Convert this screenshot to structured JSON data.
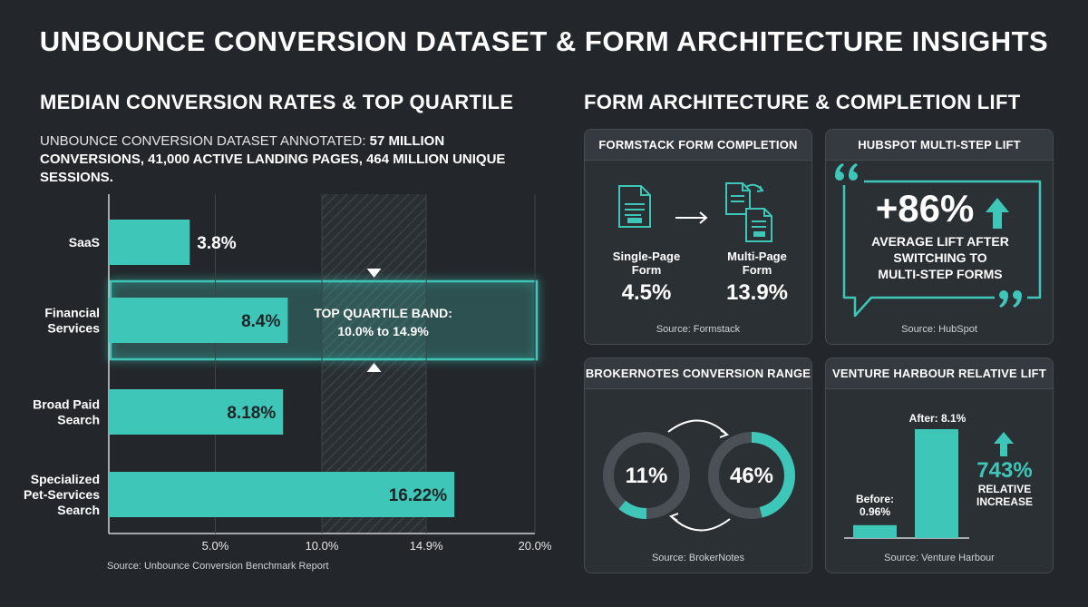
{
  "title": "UNBOUNCE CONVERSION DATASET & FORM ARCHITECTURE INSIGHTS",
  "left": {
    "heading": "MEDIAN CONVERSION RATES & TOP QUARTILE",
    "note_prefix": "UNBOUNCE CONVERSION DATASET ANNOTATED: ",
    "note_bold": "57 MILLION CONVERSIONS, 41,000 ACTIVE LANDING PAGES, 464 MILLION UNIQUE SESSIONS.",
    "source": "Source: Unbounce Conversion Benchmark Report"
  },
  "chart_data": {
    "type": "bar",
    "orientation": "horizontal",
    "categories": [
      "SaaS",
      "Financial Services",
      "Broad Paid Search",
      "Specialized Pet-Services Search"
    ],
    "category_lines": [
      [
        "SaaS"
      ],
      [
        "Financial",
        "Services"
      ],
      [
        "Broad Paid",
        "Search"
      ],
      [
        "Specialized",
        "Pet-Services",
        "Search"
      ]
    ],
    "values": [
      3.8,
      8.4,
      8.18,
      16.22
    ],
    "value_labels": [
      "3.8%",
      "8.4%",
      "8.18%",
      "16.22%"
    ],
    "xlim": [
      0,
      20
    ],
    "ticks": [
      5,
      10,
      14.9,
      20
    ],
    "tick_labels": [
      "5.0%",
      "10.0%",
      "14.9%",
      "20.0%"
    ],
    "band": {
      "from": 10.0,
      "to": 14.9,
      "label_line1": "TOP QUARTILE BAND:",
      "label_line2": "10.0% to 14.9%"
    },
    "highlighted_category": "Financial Services",
    "color": "#3ec6b8"
  },
  "right": {
    "heading": "FORM ARCHITECTURE & COMPLETION LIFT",
    "formstack": {
      "header": "FORMSTACK FORM COMPLETION",
      "single_label_1": "Single-Page",
      "single_label_2": "Form",
      "single_value": "4.5%",
      "multi_label_1": "Multi-Page",
      "multi_label_2": "Form",
      "multi_value": "13.9%",
      "source": "Source: Formstack"
    },
    "hubspot": {
      "header": "HUBSPOT MULTI-STEP LIFT",
      "value": "+86%",
      "line1": "AVERAGE LIFT AFTER",
      "line2": "SWITCHING TO",
      "line3": "MULTI-STEP FORMS",
      "source": "Source: HubSpot"
    },
    "brokernotes": {
      "header": "BROKERNOTES CONVERSION RANGE",
      "low_label": "11%",
      "low_value": 11,
      "high_label": "46%",
      "high_value": 46,
      "source": "Source: BrokerNotes"
    },
    "venture": {
      "header": "VENTURE HARBOUR RELATIVE LIFT",
      "before_label_1": "Before:",
      "before_label_2": "0.96%",
      "before_value": 0.96,
      "after_label": "After: 8.1%",
      "after_value": 8.1,
      "lift_value": "743%",
      "lift_line1": "RELATIVE",
      "lift_line2": "INCREASE",
      "source": "Source: Venture Harbour"
    }
  },
  "colors": {
    "accent": "#3ec6b8",
    "background": "#23272b",
    "card": "#2b3034"
  }
}
